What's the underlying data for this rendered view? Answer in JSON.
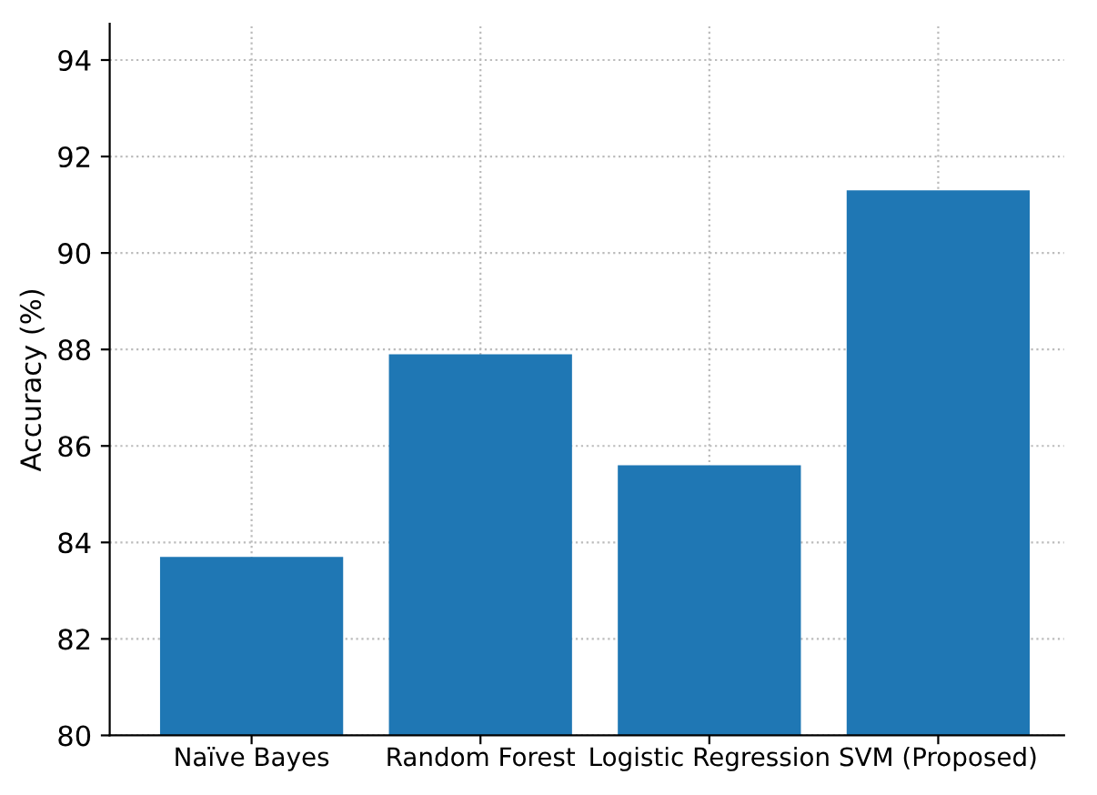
{
  "chart_data": {
    "type": "bar",
    "ylabel": "Accuracy (%)",
    "categories": [
      "Naïve Bayes",
      "Random Forest",
      "Logistic Regression",
      "SVM (Proposed)"
    ],
    "values": [
      83.7,
      87.9,
      85.6,
      91.3
    ],
    "color": "#1f77b4",
    "ylim": [
      80,
      94.75
    ],
    "yticks": [
      80,
      82,
      84,
      86,
      88,
      90,
      92,
      94
    ],
    "grid": true
  }
}
